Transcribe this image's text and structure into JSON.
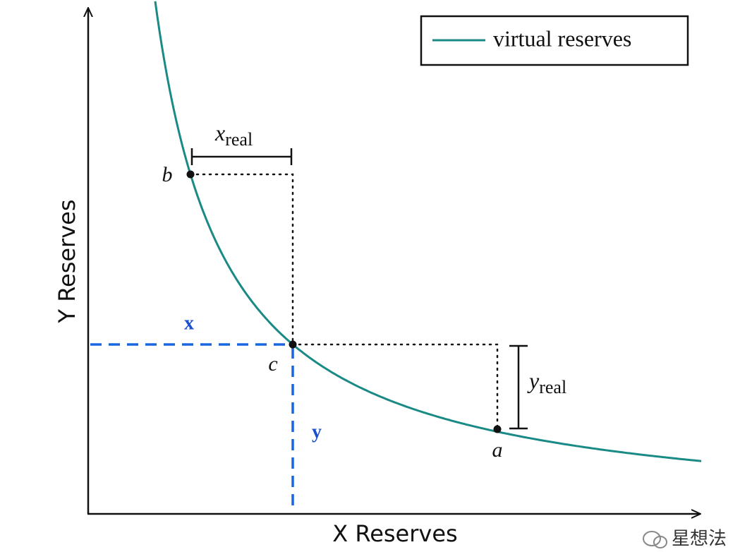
{
  "legend": {
    "label": "virtual reserves"
  },
  "axes": {
    "x_label": "X Reserves",
    "y_label": "Y Reserves"
  },
  "points": {
    "a": "a",
    "b": "b",
    "c": "c"
  },
  "annotations": {
    "x_real": {
      "symbol": "x",
      "subscript": "real"
    },
    "y_real": {
      "symbol": "y",
      "subscript": "real"
    },
    "x": "x",
    "y": "y"
  },
  "watermark": "星想法"
}
